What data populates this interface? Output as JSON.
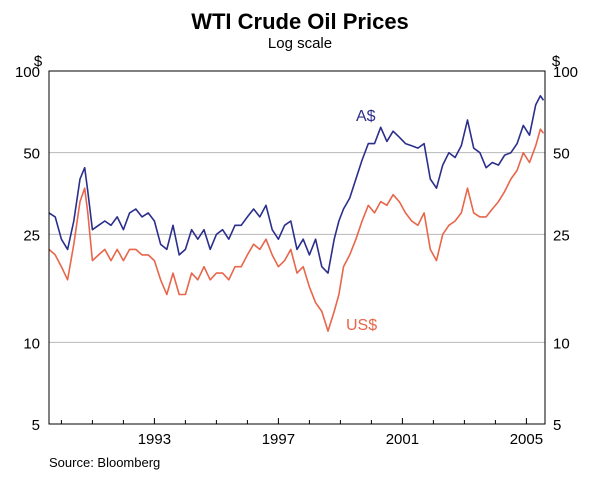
{
  "chart_data": {
    "type": "line",
    "title": "WTI Crude Oil Prices",
    "subtitle": "Log scale",
    "source": "Source: Bloomberg",
    "y_scale": "log",
    "ylim": [
      5,
      100
    ],
    "xlim": [
      1989.6,
      2005.6
    ],
    "y_unit_left": "$",
    "y_unit_right": "$",
    "y_ticks": [
      {
        "value": 5,
        "label": "5"
      },
      {
        "value": 10,
        "label": "10"
      },
      {
        "value": 25,
        "label": "25"
      },
      {
        "value": 50,
        "label": "50"
      },
      {
        "value": 100,
        "label": "100"
      }
    ],
    "gridlines": [
      10,
      25,
      50,
      100
    ],
    "x_ticks": [
      {
        "value": 1993,
        "label": "1993"
      },
      {
        "value": 1997,
        "label": "1997"
      },
      {
        "value": 2001,
        "label": "2001"
      },
      {
        "value": 2005,
        "label": "2005"
      }
    ],
    "series": [
      {
        "name": "A$",
        "color": "#2b2f8c",
        "x": [
          1989.6,
          1989.8,
          1990.0,
          1990.2,
          1990.4,
          1990.6,
          1990.75,
          1990.85,
          1991.0,
          1991.2,
          1991.4,
          1991.6,
          1991.8,
          1992.0,
          1992.2,
          1992.4,
          1992.6,
          1992.8,
          1993.0,
          1993.2,
          1993.4,
          1993.6,
          1993.8,
          1994.0,
          1994.2,
          1994.4,
          1994.6,
          1994.8,
          1995.0,
          1995.2,
          1995.4,
          1995.6,
          1995.8,
          1996.0,
          1996.2,
          1996.4,
          1996.6,
          1996.8,
          1997.0,
          1997.2,
          1997.4,
          1997.6,
          1997.8,
          1998.0,
          1998.2,
          1998.4,
          1998.6,
          1998.8,
          1998.95,
          1999.1,
          1999.3,
          1999.5,
          1999.7,
          1999.9,
          2000.1,
          2000.3,
          2000.5,
          2000.7,
          2000.9,
          2001.1,
          2001.3,
          2001.5,
          2001.7,
          2001.9,
          2002.1,
          2002.3,
          2002.5,
          2002.7,
          2002.9,
          2003.1,
          2003.3,
          2003.5,
          2003.7,
          2003.9,
          2004.1,
          2004.3,
          2004.5,
          2004.7,
          2004.9,
          2005.1,
          2005.3,
          2005.45,
          2005.55
        ],
        "values": [
          30,
          29,
          24,
          22,
          28,
          40,
          44,
          36,
          26,
          27,
          28,
          27,
          29,
          26,
          30,
          31,
          29,
          30,
          28,
          23,
          22,
          27,
          21,
          22,
          26,
          24,
          26,
          22,
          25,
          26,
          24,
          27,
          27,
          29,
          31,
          29,
          32,
          26,
          24,
          27,
          28,
          22,
          24,
          21,
          24,
          19,
          18,
          24,
          28,
          31,
          34,
          40,
          47,
          54,
          54,
          62,
          55,
          60,
          57,
          54,
          53,
          52,
          54,
          40,
          37,
          45,
          50,
          48,
          53,
          66,
          52,
          50,
          44,
          46,
          45,
          49,
          50,
          54,
          63,
          58,
          75,
          81,
          78
        ]
      },
      {
        "name": "US$",
        "color": "#e8664a",
        "x": [
          1989.6,
          1989.8,
          1990.0,
          1990.2,
          1990.4,
          1990.6,
          1990.75,
          1990.85,
          1991.0,
          1991.2,
          1991.4,
          1991.6,
          1991.8,
          1992.0,
          1992.2,
          1992.4,
          1992.6,
          1992.8,
          1993.0,
          1993.2,
          1993.4,
          1993.6,
          1993.8,
          1994.0,
          1994.2,
          1994.4,
          1994.6,
          1994.8,
          1995.0,
          1995.2,
          1995.4,
          1995.6,
          1995.8,
          1996.0,
          1996.2,
          1996.4,
          1996.6,
          1996.8,
          1997.0,
          1997.2,
          1997.4,
          1997.6,
          1997.8,
          1998.0,
          1998.2,
          1998.4,
          1998.6,
          1998.8,
          1998.95,
          1999.1,
          1999.3,
          1999.5,
          1999.7,
          1999.9,
          2000.1,
          2000.3,
          2000.5,
          2000.7,
          2000.9,
          2001.1,
          2001.3,
          2001.5,
          2001.7,
          2001.9,
          2002.1,
          2002.3,
          2002.5,
          2002.7,
          2002.9,
          2003.1,
          2003.3,
          2003.5,
          2003.7,
          2003.9,
          2004.1,
          2004.3,
          2004.5,
          2004.7,
          2004.9,
          2005.1,
          2005.3,
          2005.45,
          2005.55
        ],
        "values": [
          22,
          21,
          19,
          17,
          23,
          33,
          37,
          30,
          20,
          21,
          22,
          20,
          22,
          20,
          22,
          22,
          21,
          21,
          20,
          17,
          15,
          18,
          15,
          15,
          18,
          17,
          19,
          17,
          18,
          18,
          17,
          19,
          19,
          21,
          23,
          22,
          24,
          21,
          19,
          20,
          22,
          18,
          19,
          16,
          14,
          13,
          11,
          13,
          15,
          19,
          21,
          24,
          28,
          32,
          30,
          33,
          32,
          35,
          33,
          30,
          28,
          27,
          30,
          22,
          20,
          25,
          27,
          28,
          30,
          37,
          30,
          29,
          29,
          31,
          33,
          36,
          40,
          43,
          50,
          46,
          53,
          61,
          59
        ]
      }
    ]
  }
}
